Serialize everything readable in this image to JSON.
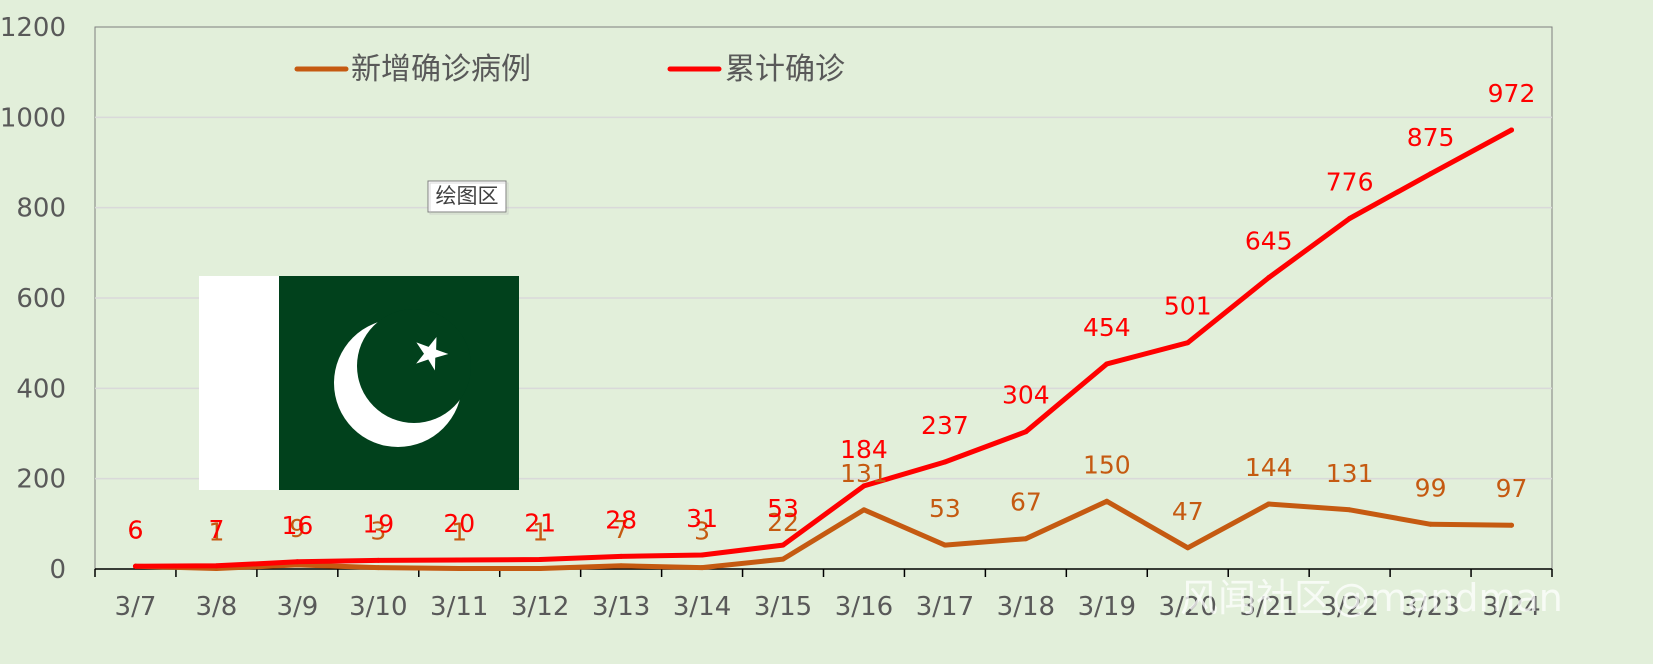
{
  "chart_data": {
    "type": "line",
    "categories": [
      "3/7",
      "3/8",
      "3/9",
      "3/10",
      "3/11",
      "3/12",
      "3/13",
      "3/14",
      "3/15",
      "3/16",
      "3/17",
      "3/18",
      "3/19",
      "3/20",
      "3/21",
      "3/22",
      "3/23",
      "3/24"
    ],
    "series": [
      {
        "name": "新增确诊病例",
        "color": "#c55a11",
        "values": [
          6,
          1,
          9,
          3,
          1,
          1,
          7,
          3,
          22,
          131,
          53,
          67,
          150,
          47,
          144,
          131,
          99,
          97
        ]
      },
      {
        "name": "累计确诊",
        "color": "#ff0000",
        "values": [
          6,
          7,
          16,
          19,
          20,
          21,
          28,
          31,
          53,
          184,
          237,
          304,
          454,
          501,
          645,
          776,
          875,
          972
        ]
      }
    ],
    "ylim": [
      0,
      1200
    ],
    "yticks": [
      0,
      200,
      400,
      600,
      800,
      1000,
      1200
    ],
    "grid": true,
    "legend": "top",
    "data_labels": true
  },
  "tooltip": "绘图区",
  "watermark": "风闻社区@mandman",
  "colors": {
    "background": "#e2efda",
    "gridline": "#d9d9d9",
    "flag_green": "#01411c",
    "flag_white": "#ffffff"
  },
  "flag": "pakistan-flag"
}
